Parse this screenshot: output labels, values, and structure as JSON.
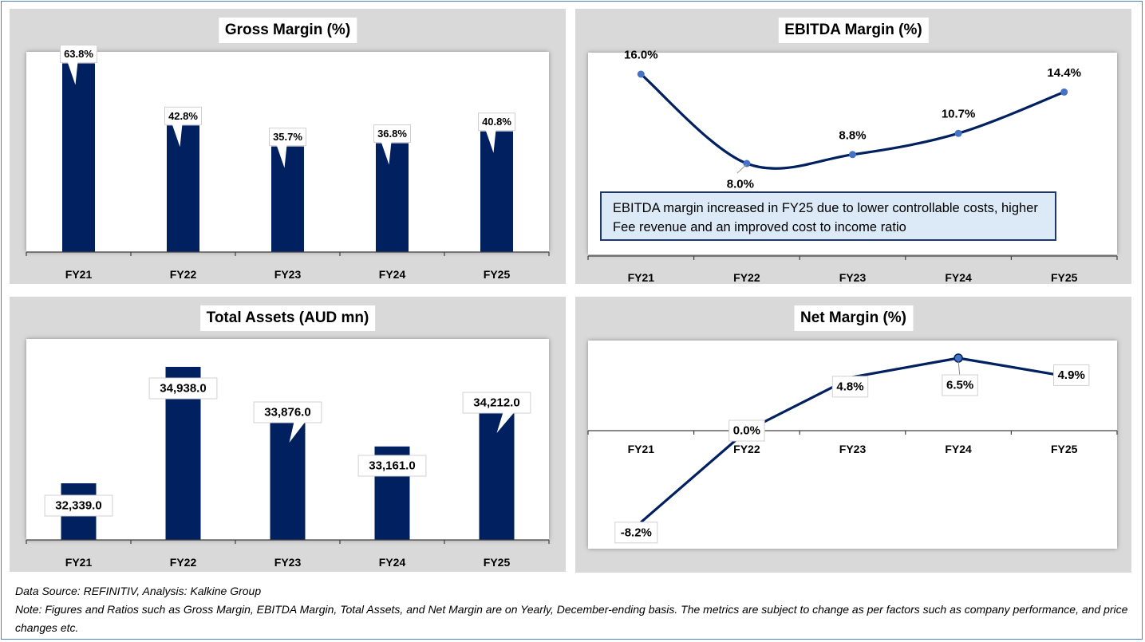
{
  "footer": {
    "source": "Data Source: REFINITIV, Analysis: Kalkine Group",
    "note": "Note: Figures and Ratios such as Gross Margin, EBITDA Margin, Total Assets, and Net Margin are on Yearly, December-ending basis. The metrics are subject to change as per factors such as company performance, and price changes etc."
  },
  "colors": {
    "bar": "#002060",
    "line": "#002060",
    "marker": "#4472c4",
    "panel_bg": "#d9d9d9",
    "note_bg": "#dce9f6",
    "frame": "#4f81bd"
  },
  "chart_data": [
    {
      "id": "gross-margin",
      "type": "bar",
      "title": "Gross Margin (%)",
      "categories": [
        "FY21",
        "FY22",
        "FY23",
        "FY24",
        "FY25"
      ],
      "values": [
        63.8,
        42.8,
        35.7,
        36.8,
        40.8
      ],
      "labels": [
        "63.8%",
        "42.8%",
        "35.7%",
        "36.8%",
        "40.8%"
      ],
      "ylim": [
        0,
        65
      ],
      "xlabel": "",
      "ylabel": "",
      "grid": false,
      "legend": "none"
    },
    {
      "id": "ebitda-margin",
      "type": "line",
      "smooth": true,
      "title": "EBITDA Margin (%)",
      "categories": [
        "FY21",
        "FY22",
        "FY23",
        "FY24",
        "FY25"
      ],
      "values": [
        16.0,
        8.0,
        8.8,
        10.7,
        14.4
      ],
      "labels": [
        "16.0%",
        "8.0%",
        "8.8%",
        "10.7%",
        "14.4%"
      ],
      "ylim": [
        0,
        17.5
      ],
      "annotation": "EBITDA margin increased in FY25 due to lower controllable costs, higher Fee revenue and an improved cost to income ratio",
      "xlabel": "",
      "ylabel": "",
      "grid": false,
      "legend": "none"
    },
    {
      "id": "total-assets",
      "type": "bar",
      "title": "Total Assets (AUD mn)",
      "categories": [
        "FY21",
        "FY22",
        "FY23",
        "FY24",
        "FY25"
      ],
      "values": [
        32339.0,
        34938.0,
        33876.0,
        33161.0,
        34212.0
      ],
      "labels": [
        "32,339.0",
        "34,938.0",
        "33,876.0",
        "33,161.0",
        "34,212.0"
      ],
      "ylim": [
        31500,
        35500
      ],
      "xlabel": "",
      "ylabel": "",
      "grid": false,
      "legend": "none"
    },
    {
      "id": "net-margin",
      "type": "line",
      "smooth": false,
      "title": "Net Margin (%)",
      "categories": [
        "FY21",
        "FY22",
        "FY23",
        "FY24",
        "FY25"
      ],
      "values": [
        -8.2,
        0.0,
        4.8,
        6.5,
        4.9
      ],
      "labels": [
        "-8.2%",
        "0.0%",
        "4.8%",
        "6.5%",
        "4.9%"
      ],
      "ylim": [
        -10,
        8
      ],
      "xlabel": "",
      "ylabel": "",
      "grid": false,
      "legend": "none"
    }
  ]
}
